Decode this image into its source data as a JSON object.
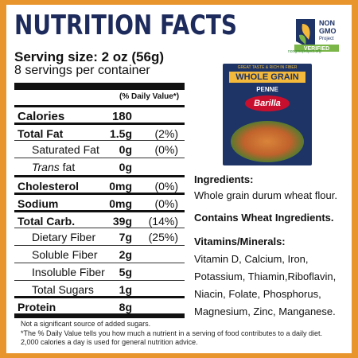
{
  "title": "NUTRITION FACTS",
  "serving_size": "Serving size: 2 oz (56g)",
  "servings_per_container": "8 servings per container",
  "daily_value_header": "(% Daily Value*)",
  "rows": [
    {
      "label": "Calories",
      "amount": "180",
      "pct": ""
    },
    {
      "label": "Total Fat",
      "amount": "1.5g",
      "pct": "(2%)"
    },
    {
      "label": "Saturated Fat",
      "amount": "0g",
      "pct": "(0%)"
    },
    {
      "label_italic": "Trans",
      "label_rest": " fat",
      "amount": "0g",
      "pct": ""
    },
    {
      "label": "Cholesterol",
      "amount": "0mg",
      "pct": "(0%)"
    },
    {
      "label": "Sodium",
      "amount": "0mg",
      "pct": "(0%)"
    },
    {
      "label": "Total Carb.",
      "amount": "39g",
      "pct": "(14%)"
    },
    {
      "label": "Dietary Fiber",
      "amount": "7g",
      "pct": "(25%)"
    },
    {
      "label": "Soluble Fiber",
      "amount": "2g",
      "pct": ""
    },
    {
      "label": "Insoluble Fiber",
      "amount": "5g",
      "pct": ""
    },
    {
      "label": "Total Sugars",
      "amount": "1g",
      "pct": ""
    },
    {
      "label": "Protein",
      "amount": "8g",
      "pct": ""
    }
  ],
  "footnotes": {
    "line1": "Not a significant source of added sugars.",
    "line2": "*The % Daily Value tells you how much a nutrient in a serving of food contributes to a daily diet.",
    "line3": "2,000 calories a day is used for general nutrition advice."
  },
  "product_box": {
    "tagline": "GREAT TASTE & RICH IN FIBER",
    "variety": "WHOLE GRAIN",
    "shape": "PENNE",
    "brand": "Barilla"
  },
  "badge": {
    "line1": "NON",
    "line2": "GMO",
    "line3": "Project",
    "line4": "VERIFIED",
    "url": "nongmoproject.org"
  },
  "ingredients": {
    "heading": "Ingredients:",
    "text": "Whole grain durum wheat flour.",
    "allergen": "Contains Wheat Ingredients."
  },
  "vitamins": {
    "heading": "Vitamins/Minerals:",
    "lines": [
      "Vitamin D, Calcium, Iron,",
      "Potassium, Thiamin,Riboflavin,",
      "Niacin, Folate, Phosphorus,",
      "Magnesium, Zinc, Manganese."
    ]
  },
  "colors": {
    "navy": "#1d2a5c",
    "orange_border": "#e8952e",
    "barilla_red": "#c8102e"
  }
}
